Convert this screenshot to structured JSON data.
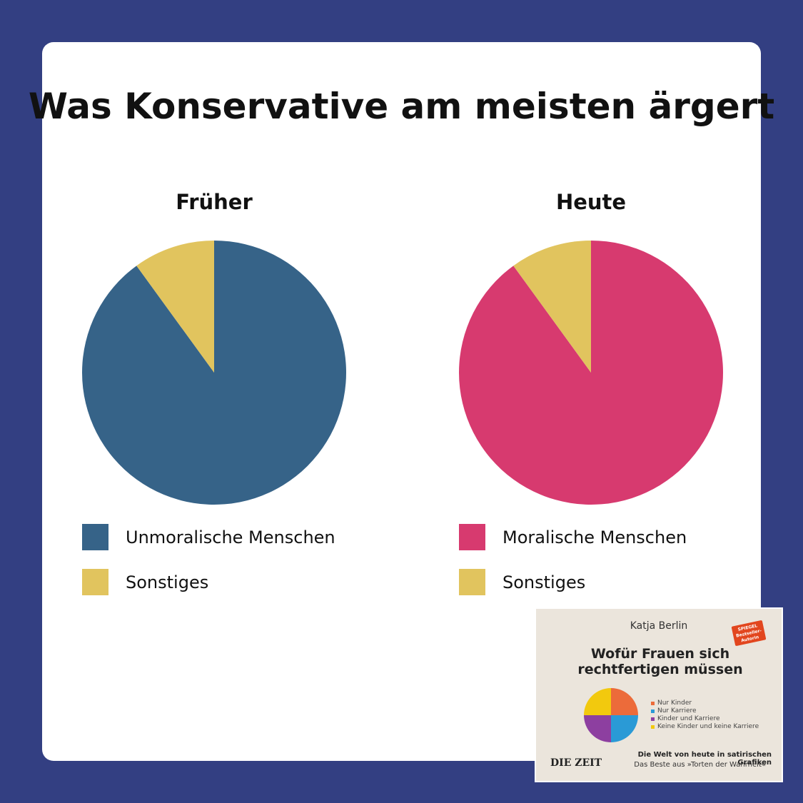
{
  "title": "Was Konservative am meisten ärgert",
  "colors": {
    "background": "#333f82",
    "blue": "#366388",
    "pink": "#d73a6f",
    "yellow": "#e1c45e"
  },
  "chart_data": [
    {
      "type": "pie",
      "title": "Früher",
      "labels": [
        "Unmoralische Menschen",
        "Sonstiges"
      ],
      "values": [
        90,
        10
      ],
      "colors": [
        "#366388",
        "#e1c45e"
      ],
      "legend": "bottom"
    },
    {
      "type": "pie",
      "title": "Heute",
      "labels": [
        "Moralische Menschen",
        "Sonstiges"
      ],
      "values": [
        90,
        10
      ],
      "colors": [
        "#d73a6f",
        "#e1c45e"
      ],
      "legend": "bottom"
    }
  ],
  "book": {
    "author": "Katja Berlin",
    "title": "Wofür Frauen sich rechtfertigen müssen",
    "badge": "SPIEGEL Bestseller-Autorin",
    "legend": [
      "Nur Kinder",
      "Nur Karriere",
      "Kinder und Karriere",
      "Keine Kinder und keine Karriere"
    ],
    "legend_colors": [
      "#ec6b3a",
      "#2a9ad6",
      "#8d3fa0",
      "#f2c90e"
    ],
    "publisher": "DIE ZEIT",
    "subtitle_1": "Die Welt von heute in satirischen Grafiken",
    "subtitle_2": "Das Beste aus »Torten der Wahrheit«"
  }
}
